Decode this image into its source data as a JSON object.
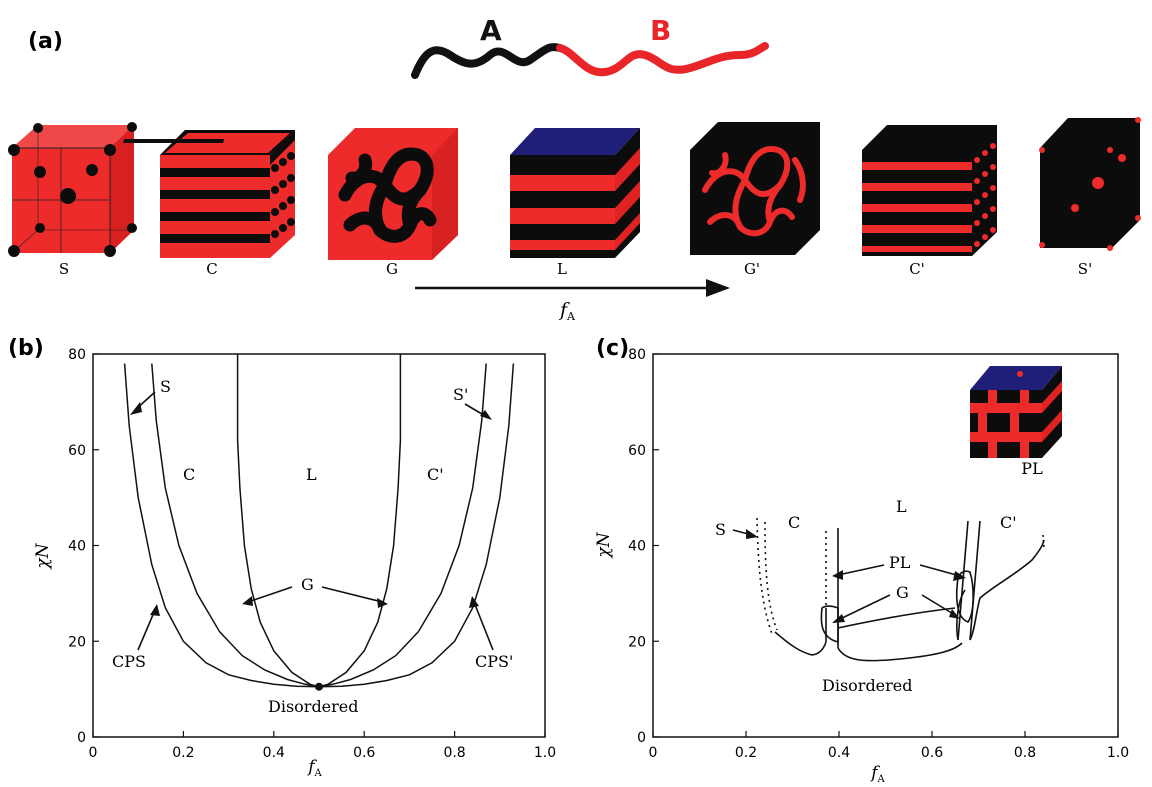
{
  "panels": {
    "a": "(a)",
    "b": "(b)",
    "c": "(c)"
  },
  "chain": {
    "block_a": "A",
    "block_b": "B",
    "color_a": "#111111",
    "color_b": "#e8262a"
  },
  "structures": [
    "S",
    "C",
    "G",
    "L",
    "G'",
    "C'",
    "S'"
  ],
  "arrow_label": "f",
  "arrow_label_sub": "A",
  "colors": {
    "red": "#ee2b2b",
    "black": "#0c0c0c",
    "blue": "#1f1f7a"
  },
  "chart_data": [
    {
      "type": "line",
      "title": "",
      "xlabel": "f",
      "xlabel_sub": "A",
      "ylabel": "χN",
      "xlim": [
        0,
        1.0
      ],
      "ylim": [
        0,
        80
      ],
      "xticks": [
        "0",
        "0.2",
        "0.4",
        "0.6",
        "0.8",
        "1.0"
      ],
      "yticks": [
        "0",
        "20",
        "40",
        "60",
        "80"
      ],
      "phase_labels": [
        "S",
        "C",
        "L",
        "C'",
        "S'",
        "G",
        "CPS",
        "CPS'",
        "Disordered"
      ],
      "critical_point": {
        "x": 0.5,
        "y": 10.5
      },
      "series": [
        {
          "x": [
            0.07,
            0.08,
            0.1,
            0.13,
            0.16,
            0.2,
            0.25,
            0.3,
            0.35,
            0.4,
            0.45,
            0.5
          ],
          "y": [
            78,
            65,
            50,
            36,
            27,
            20,
            15.5,
            13,
            11.8,
            11,
            10.6,
            10.5
          ]
        },
        {
          "x": [
            0.5,
            0.55,
            0.6,
            0.65,
            0.7,
            0.75,
            0.8,
            0.84,
            0.87,
            0.9,
            0.92,
            0.93
          ],
          "y": [
            10.5,
            10.6,
            11,
            11.8,
            13,
            15.5,
            20,
            27,
            36,
            50,
            65,
            78
          ]
        },
        {
          "x": [
            0.13,
            0.14,
            0.16,
            0.19,
            0.23,
            0.28,
            0.33,
            0.38,
            0.43,
            0.47,
            0.5
          ],
          "y": [
            78,
            66,
            52,
            40,
            30,
            22,
            17,
            14,
            12,
            11,
            10.5
          ]
        },
        {
          "x": [
            0.5,
            0.53,
            0.57,
            0.62,
            0.67,
            0.72,
            0.77,
            0.81,
            0.84,
            0.86,
            0.87
          ],
          "y": [
            10.5,
            11,
            12,
            14,
            17,
            22,
            30,
            40,
            52,
            66,
            78
          ]
        },
        {
          "x": [
            0.32,
            0.32,
            0.325,
            0.335,
            0.35,
            0.37,
            0.4,
            0.44,
            0.48,
            0.5
          ],
          "y": [
            80,
            62,
            52,
            40,
            31,
            24,
            18,
            13.5,
            11,
            10.5
          ]
        },
        {
          "x": [
            0.5,
            0.52,
            0.56,
            0.6,
            0.63,
            0.65,
            0.665,
            0.675,
            0.68,
            0.68
          ],
          "y": [
            10.5,
            11,
            13.5,
            18,
            24,
            31,
            40,
            52,
            62,
            80
          ]
        }
      ]
    },
    {
      "type": "line",
      "title": "",
      "xlabel": "f",
      "xlabel_sub": "A",
      "ylabel": "χN",
      "xlim": [
        0,
        1.0
      ],
      "ylim": [
        0,
        80
      ],
      "xticks": [
        "0",
        "0.2",
        "0.4",
        "0.6",
        "0.8",
        "1.0"
      ],
      "yticks": [
        "0",
        "20",
        "40",
        "60",
        "80"
      ],
      "phase_labels": [
        "S",
        "C",
        "L",
        "C'",
        "PL",
        "G",
        "Disordered",
        "PL"
      ],
      "series": [
        {
          "x": [
            0.25,
            0.27,
            0.3,
            0.33,
            0.35,
            0.37
          ],
          "y": [
            24,
            21,
            19,
            18,
            18.5,
            21
          ]
        },
        {
          "x": [
            0.4,
            0.42,
            0.45,
            0.5,
            0.55,
            0.6,
            0.63,
            0.65
          ],
          "y": [
            20,
            18.5,
            17.5,
            17.5,
            18.5,
            20,
            21,
            23
          ]
        },
        {
          "x": [
            0.7,
            0.72,
            0.74,
            0.77,
            0.8,
            0.82,
            0.83
          ],
          "y": [
            27,
            31,
            34,
            36,
            38.5,
            40,
            42
          ]
        }
      ]
    }
  ]
}
